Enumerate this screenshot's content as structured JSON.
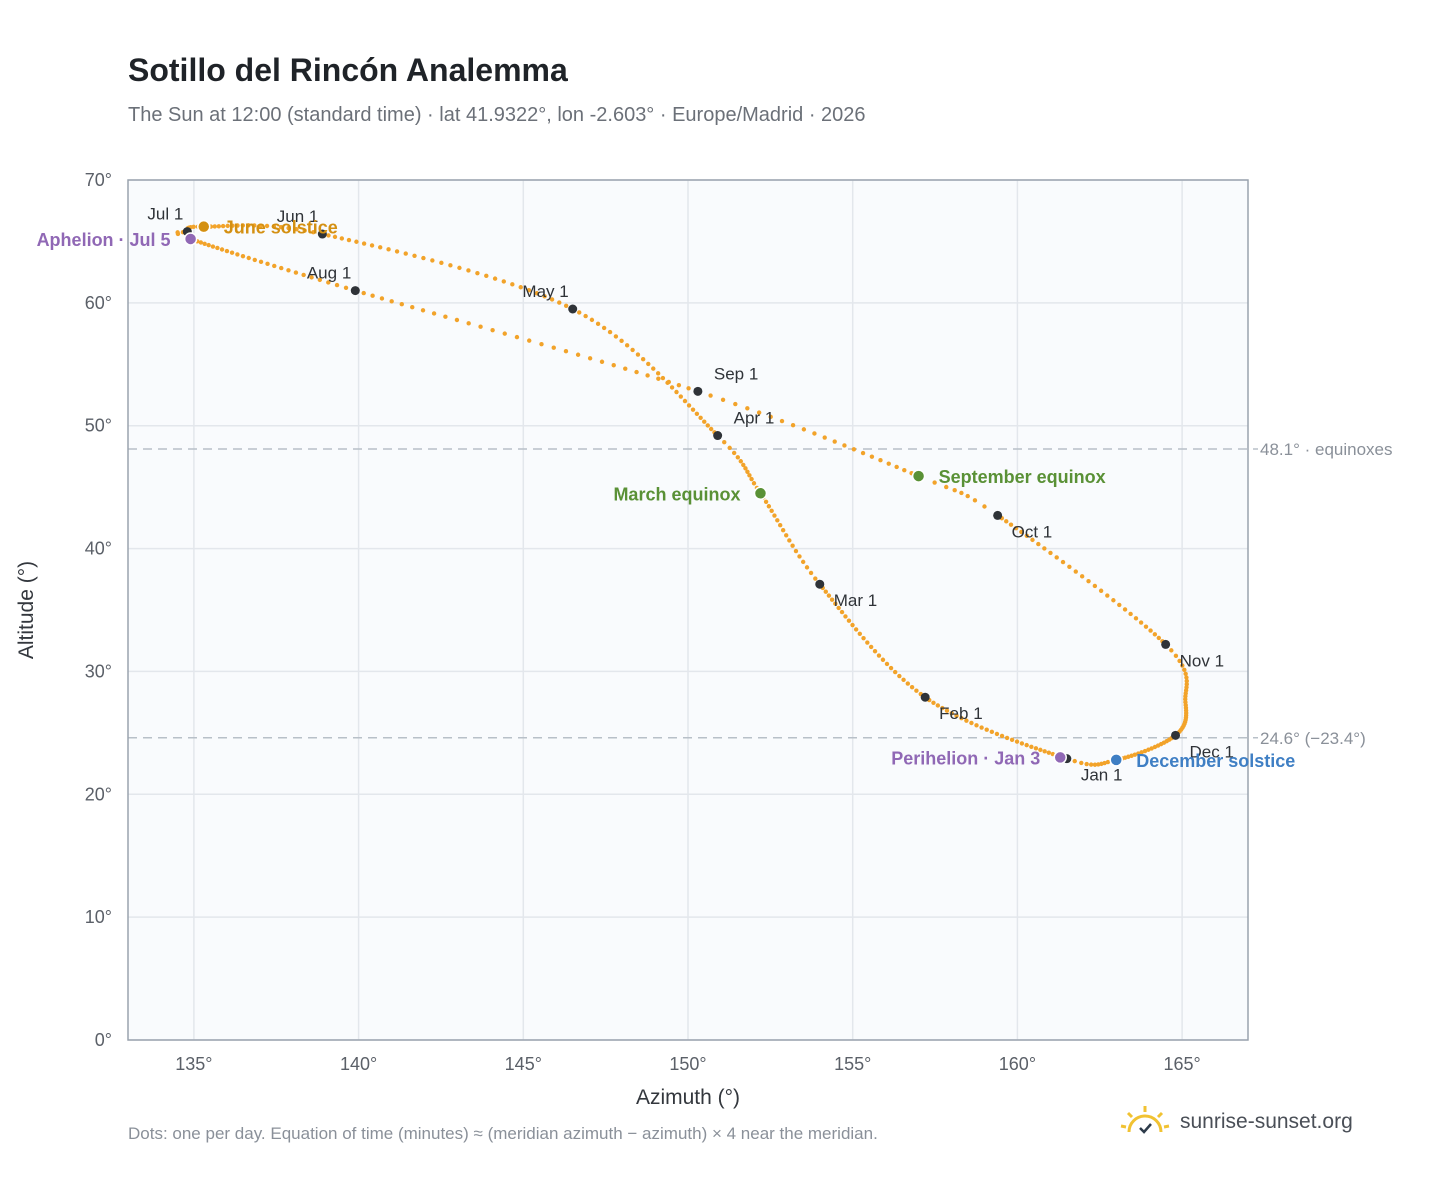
{
  "title": "Sotillo del Rincón Analemma",
  "subtitle": "The Sun at 12:00 (standard time) · lat 41.9322°, lon -2.603° · Europe/Madrid · 2026",
  "footnote": "Dots: one per day. Equation of time (minutes) ≈ (meridian azimuth − azimuth) × 4 near the meridian.",
  "brand": {
    "text": "sunrise-sunset.org",
    "icon": "sun-check-icon"
  },
  "colors": {
    "path": "#f2a32a",
    "month": "#2f3338",
    "equinox": "#5a9136",
    "perihelion": "#9068b5",
    "december": "#3f7fc4",
    "june": "#d49012",
    "grid": "#e3e7ec",
    "plot_bg": "#f9fbfd"
  },
  "chart_data": {
    "type": "scatter",
    "title": "Sotillo del Rincón Analemma",
    "xlabel": "Azimuth (°)",
    "ylabel": "Altitude (°)",
    "xlim": [
      133,
      167
    ],
    "ylim": [
      0,
      70
    ],
    "xticks": [
      135,
      140,
      145,
      150,
      155,
      160,
      165
    ],
    "yticks": [
      0,
      10,
      20,
      30,
      40,
      50,
      60,
      70
    ],
    "x_tick_labels": [
      "135°",
      "140°",
      "145°",
      "150°",
      "155°",
      "160°",
      "165°"
    ],
    "y_tick_labels": [
      "0°",
      "10°",
      "20°",
      "30°",
      "40°",
      "50°",
      "60°",
      "70°"
    ],
    "grid": true,
    "path_waypoints": [
      {
        "doy": 1,
        "az": 161.5,
        "alt": 22.9
      },
      {
        "doy": 32,
        "az": 157.2,
        "alt": 27.9
      },
      {
        "doy": 60,
        "az": 154.0,
        "alt": 37.1
      },
      {
        "doy": 78,
        "az": 152.2,
        "alt": 44.5
      },
      {
        "doy": 91,
        "az": 150.9,
        "alt": 49.2
      },
      {
        "doy": 121,
        "az": 146.5,
        "alt": 59.5
      },
      {
        "doy": 152,
        "az": 138.9,
        "alt": 65.6
      },
      {
        "doy": 172,
        "az": 135.3,
        "alt": 66.2
      },
      {
        "doy": 182,
        "az": 134.8,
        "alt": 65.8
      },
      {
        "doy": 186,
        "az": 134.9,
        "alt": 65.2
      },
      {
        "doy": 213,
        "az": 139.9,
        "alt": 61.0
      },
      {
        "doy": 244,
        "az": 150.3,
        "alt": 52.8
      },
      {
        "doy": 266,
        "az": 157.0,
        "alt": 45.9
      },
      {
        "doy": 274,
        "az": 159.4,
        "alt": 42.7
      },
      {
        "doy": 305,
        "az": 164.5,
        "alt": 32.2
      },
      {
        "doy": 320,
        "az": 165.1,
        "alt": 27.5
      },
      {
        "doy": 335,
        "az": 164.8,
        "alt": 24.8
      },
      {
        "doy": 355,
        "az": 163.0,
        "alt": 22.8
      },
      {
        "doy": 366,
        "az": 161.5,
        "alt": 22.9
      }
    ],
    "months": [
      {
        "label": "Jan 1",
        "az": 161.5,
        "alt": 22.9,
        "pos": "below-right"
      },
      {
        "label": "Feb 1",
        "az": 157.2,
        "alt": 27.9,
        "pos": "below-right"
      },
      {
        "label": "Mar 1",
        "az": 154.0,
        "alt": 37.1,
        "pos": "below-right"
      },
      {
        "label": "Apr 1",
        "az": 150.9,
        "alt": 49.2,
        "pos": "above-right"
      },
      {
        "label": "May 1",
        "az": 146.5,
        "alt": 59.5,
        "pos": "above-left"
      },
      {
        "label": "Jun 1",
        "az": 138.9,
        "alt": 65.6,
        "pos": "above-left"
      },
      {
        "label": "Jul 1",
        "az": 134.8,
        "alt": 65.8,
        "pos": "above-left"
      },
      {
        "label": "Aug 1",
        "az": 139.9,
        "alt": 61.0,
        "pos": "above-left"
      },
      {
        "label": "Sep 1",
        "az": 150.3,
        "alt": 52.8,
        "pos": "above-right"
      },
      {
        "label": "Oct 1",
        "az": 159.4,
        "alt": 42.7,
        "pos": "below-right"
      },
      {
        "label": "Nov 1",
        "az": 164.5,
        "alt": 32.2,
        "pos": "below-right"
      },
      {
        "label": "Dec 1",
        "az": 164.8,
        "alt": 24.8,
        "pos": "below-right"
      }
    ],
    "events": [
      {
        "label": "March equinox",
        "az": 152.2,
        "alt": 44.5,
        "color": "#5a9136",
        "side": "left"
      },
      {
        "label": "June solstice",
        "az": 135.3,
        "alt": 66.2,
        "color": "#d49012",
        "side": "right"
      },
      {
        "label": "Aphelion · Jul 5",
        "az": 134.9,
        "alt": 65.2,
        "color": "#9068b5",
        "side": "left"
      },
      {
        "label": "September equinox",
        "az": 157.0,
        "alt": 45.9,
        "color": "#5a9136",
        "side": "right"
      },
      {
        "label": "December solstice",
        "az": 163.0,
        "alt": 22.8,
        "color": "#3f7fc4",
        "side": "right"
      },
      {
        "label": "Perihelion · Jan 3",
        "az": 161.3,
        "alt": 23.0,
        "color": "#9068b5",
        "side": "left"
      }
    ],
    "reference_lines": [
      {
        "alt": 48.1,
        "label": "48.1° · equinoxes"
      },
      {
        "alt": 24.6,
        "label": "24.6° (−23.4°)"
      }
    ]
  }
}
